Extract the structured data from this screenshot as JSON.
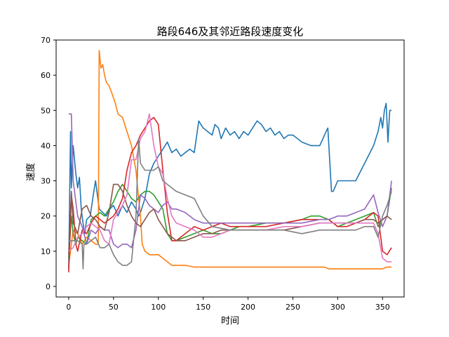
{
  "chart_data": {
    "type": "line",
    "title": "路段646及其邻近路段速度变化",
    "xlabel": "时间",
    "ylabel": "速度",
    "xlim": [
      -14,
      374
    ],
    "ylim": [
      -3,
      70
    ],
    "xticks": [
      0,
      50,
      100,
      150,
      200,
      250,
      300,
      350
    ],
    "yticks": [
      0,
      10,
      20,
      30,
      40,
      50,
      60,
      70
    ],
    "grid": false,
    "legend": "none",
    "series": [
      {
        "color": "#1f77b4",
        "x": [
          0,
          2,
          3,
          5,
          8,
          10,
          12,
          14,
          16,
          18,
          20,
          24,
          28,
          30,
          34,
          38,
          42,
          46,
          50,
          55,
          60,
          65,
          70,
          75,
          78,
          80,
          85,
          90,
          95,
          100,
          105,
          110,
          115,
          120,
          125,
          130,
          135,
          140,
          145,
          150,
          155,
          160,
          163,
          167,
          170,
          175,
          180,
          185,
          190,
          195,
          200,
          205,
          210,
          215,
          220,
          225,
          230,
          235,
          240,
          245,
          250,
          255,
          260,
          270,
          280,
          287,
          289,
          293,
          295,
          300,
          310,
          320,
          330,
          340,
          345,
          348,
          350,
          352,
          354,
          356,
          358,
          360
        ],
        "y": [
          5,
          44,
          28,
          40,
          32,
          28,
          31,
          22,
          18,
          15,
          19,
          20,
          27,
          30,
          22,
          21,
          20,
          22,
          23,
          20,
          23,
          21,
          24,
          22,
          20,
          21,
          25,
          32,
          35,
          37,
          39,
          41,
          38,
          39,
          37,
          38,
          39,
          38,
          47,
          45,
          44,
          43,
          46,
          45,
          42,
          45,
          43,
          44,
          42,
          44,
          43,
          45,
          47,
          46,
          44,
          45,
          43,
          44,
          42,
          43,
          43,
          42,
          41,
          40,
          40,
          44,
          45,
          27,
          27,
          30,
          30,
          30,
          35,
          40,
          44,
          48,
          45,
          50,
          52,
          41,
          50,
          50
        ]
      },
      {
        "color": "#ff7f0e",
        "x": [
          0,
          5,
          10,
          15,
          20,
          25,
          30,
          33,
          34,
          36,
          38,
          40,
          42,
          45,
          48,
          52,
          55,
          60,
          65,
          70,
          75,
          78,
          80,
          82,
          85,
          90,
          95,
          100,
          105,
          110,
          115,
          120,
          130,
          140,
          150,
          160,
          180,
          200,
          220,
          240,
          260,
          280,
          285,
          290,
          300,
          320,
          340,
          345,
          350,
          355,
          360
        ],
        "y": [
          6,
          16,
          15,
          12,
          14,
          13,
          12,
          12,
          67,
          62,
          63,
          60,
          58,
          57,
          55,
          52,
          49,
          48,
          44,
          40,
          33,
          25,
          20,
          12,
          10,
          9,
          9,
          9,
          8,
          7,
          6,
          6,
          6,
          5.5,
          5.5,
          5.5,
          5.5,
          5.5,
          5.5,
          5.5,
          5.5,
          5.5,
          5.5,
          5,
          5,
          5,
          5,
          5,
          5,
          5.5,
          5.5
        ]
      },
      {
        "color": "#2ca02c",
        "x": [
          0,
          3,
          5,
          8,
          10,
          15,
          20,
          25,
          30,
          35,
          40,
          45,
          50,
          55,
          60,
          65,
          70,
          75,
          80,
          85,
          90,
          95,
          100,
          105,
          110,
          115,
          120,
          130,
          140,
          150,
          160,
          170,
          180,
          190,
          200,
          220,
          240,
          260,
          270,
          280,
          290,
          300,
          310,
          320,
          330,
          340,
          345,
          350,
          355,
          360
        ],
        "y": [
          8,
          20,
          15,
          12,
          14,
          13,
          12,
          19,
          20,
          21,
          20,
          22,
          24,
          27,
          29,
          27,
          25,
          24,
          26,
          27,
          27,
          26,
          24,
          22,
          15,
          13,
          13,
          14,
          15,
          16,
          15,
          15,
          16,
          17,
          17,
          18,
          18,
          19,
          20,
          20,
          19,
          17,
          18,
          19,
          20,
          21,
          17,
          19,
          20,
          28
        ]
      },
      {
        "color": "#d62728",
        "x": [
          0,
          2,
          3,
          5,
          8,
          10,
          15,
          20,
          25,
          30,
          35,
          40,
          45,
          50,
          55,
          60,
          65,
          70,
          75,
          80,
          85,
          90,
          95,
          100,
          105,
          110,
          115,
          120,
          130,
          140,
          150,
          160,
          170,
          180,
          200,
          220,
          240,
          260,
          280,
          290,
          300,
          310,
          320,
          330,
          340,
          345,
          350,
          355,
          360
        ],
        "y": [
          4,
          18,
          26,
          22,
          12,
          10,
          16,
          15,
          18,
          20,
          19,
          18,
          19,
          20,
          22,
          25,
          33,
          38,
          40,
          43,
          45,
          47,
          48,
          46,
          33,
          21,
          13,
          13,
          15,
          17,
          16,
          17,
          18,
          17,
          17,
          17,
          18,
          19,
          19,
          19,
          17,
          17,
          18,
          19,
          21,
          20,
          10,
          9,
          11
        ]
      },
      {
        "color": "#9467bd",
        "x": [
          0,
          3,
          5,
          10,
          15,
          20,
          25,
          30,
          35,
          40,
          45,
          50,
          55,
          60,
          65,
          70,
          75,
          80,
          85,
          90,
          95,
          100,
          105,
          110,
          115,
          120,
          130,
          140,
          150,
          160,
          170,
          180,
          200,
          220,
          240,
          260,
          280,
          290,
          300,
          310,
          320,
          330,
          335,
          340,
          345,
          350,
          355,
          360
        ],
        "y": [
          49,
          49,
          30,
          20,
          17,
          12,
          16,
          15,
          17,
          16,
          16,
          12,
          11,
          12,
          12,
          11,
          16,
          26,
          25,
          23,
          22,
          21,
          23,
          24,
          22,
          22,
          21,
          19,
          18,
          18,
          18,
          18,
          18,
          18,
          18,
          18,
          19,
          19,
          20,
          20,
          21,
          22,
          24,
          26,
          21,
          17,
          20,
          30
        ]
      },
      {
        "color": "#8c564b",
        "x": [
          0,
          3,
          5,
          10,
          15,
          20,
          25,
          30,
          35,
          40,
          45,
          50,
          55,
          60,
          65,
          70,
          75,
          80,
          85,
          90,
          95,
          100,
          105,
          110,
          115,
          120,
          130,
          140,
          150,
          160,
          170,
          180,
          200,
          220,
          240,
          260,
          280,
          290,
          300,
          310,
          320,
          330,
          340,
          345,
          350,
          355,
          360
        ],
        "y": [
          9,
          27,
          18,
          15,
          22,
          23,
          20,
          19,
          17,
          16,
          21,
          29,
          29,
          27,
          23,
          20,
          18,
          17,
          19,
          21,
          22,
          19,
          17,
          15,
          14,
          13,
          13,
          14,
          15,
          15,
          16,
          16,
          16,
          16,
          16,
          17,
          18,
          18,
          18,
          18,
          18,
          19,
          19,
          18,
          19,
          20,
          19
        ]
      },
      {
        "color": "#e377c2",
        "x": [
          0,
          5,
          10,
          15,
          20,
          25,
          30,
          35,
          40,
          45,
          50,
          55,
          60,
          65,
          70,
          75,
          80,
          85,
          90,
          95,
          100,
          105,
          110,
          115,
          120,
          130,
          140,
          150,
          160,
          170,
          180,
          200,
          220,
          240,
          260,
          280,
          290,
          300,
          320,
          340,
          345,
          350,
          355,
          360
        ],
        "y": [
          10,
          11,
          14,
          15,
          17,
          18,
          17,
          16,
          13,
          12,
          19,
          21,
          23,
          26,
          36,
          36,
          42,
          44,
          49,
          40,
          34,
          32,
          25,
          20,
          18,
          17,
          16,
          14,
          14,
          15,
          16,
          16,
          16,
          17,
          17,
          18,
          18,
          18,
          18,
          18,
          15,
          8,
          7,
          7
        ]
      },
      {
        "color": "#7f7f7f",
        "x": [
          0,
          3,
          5,
          10,
          15,
          16,
          17,
          20,
          25,
          30,
          35,
          40,
          45,
          50,
          55,
          60,
          65,
          70,
          75,
          78,
          80,
          85,
          90,
          95,
          100,
          105,
          110,
          115,
          120,
          130,
          140,
          150,
          160,
          180,
          200,
          220,
          240,
          260,
          280,
          290,
          300,
          310,
          320,
          330,
          340,
          345,
          350,
          355,
          360
        ],
        "y": [
          13,
          13,
          13,
          13,
          12,
          5,
          12,
          12,
          13,
          14,
          11,
          11,
          12,
          9,
          7,
          6,
          6,
          7,
          20,
          42,
          35,
          33,
          33,
          33,
          34,
          30,
          29,
          28,
          27,
          26,
          25,
          20,
          17,
          16,
          16,
          16,
          16,
          15,
          16,
          16,
          16,
          16,
          16,
          17,
          17,
          14,
          20,
          23,
          27
        ]
      }
    ]
  }
}
